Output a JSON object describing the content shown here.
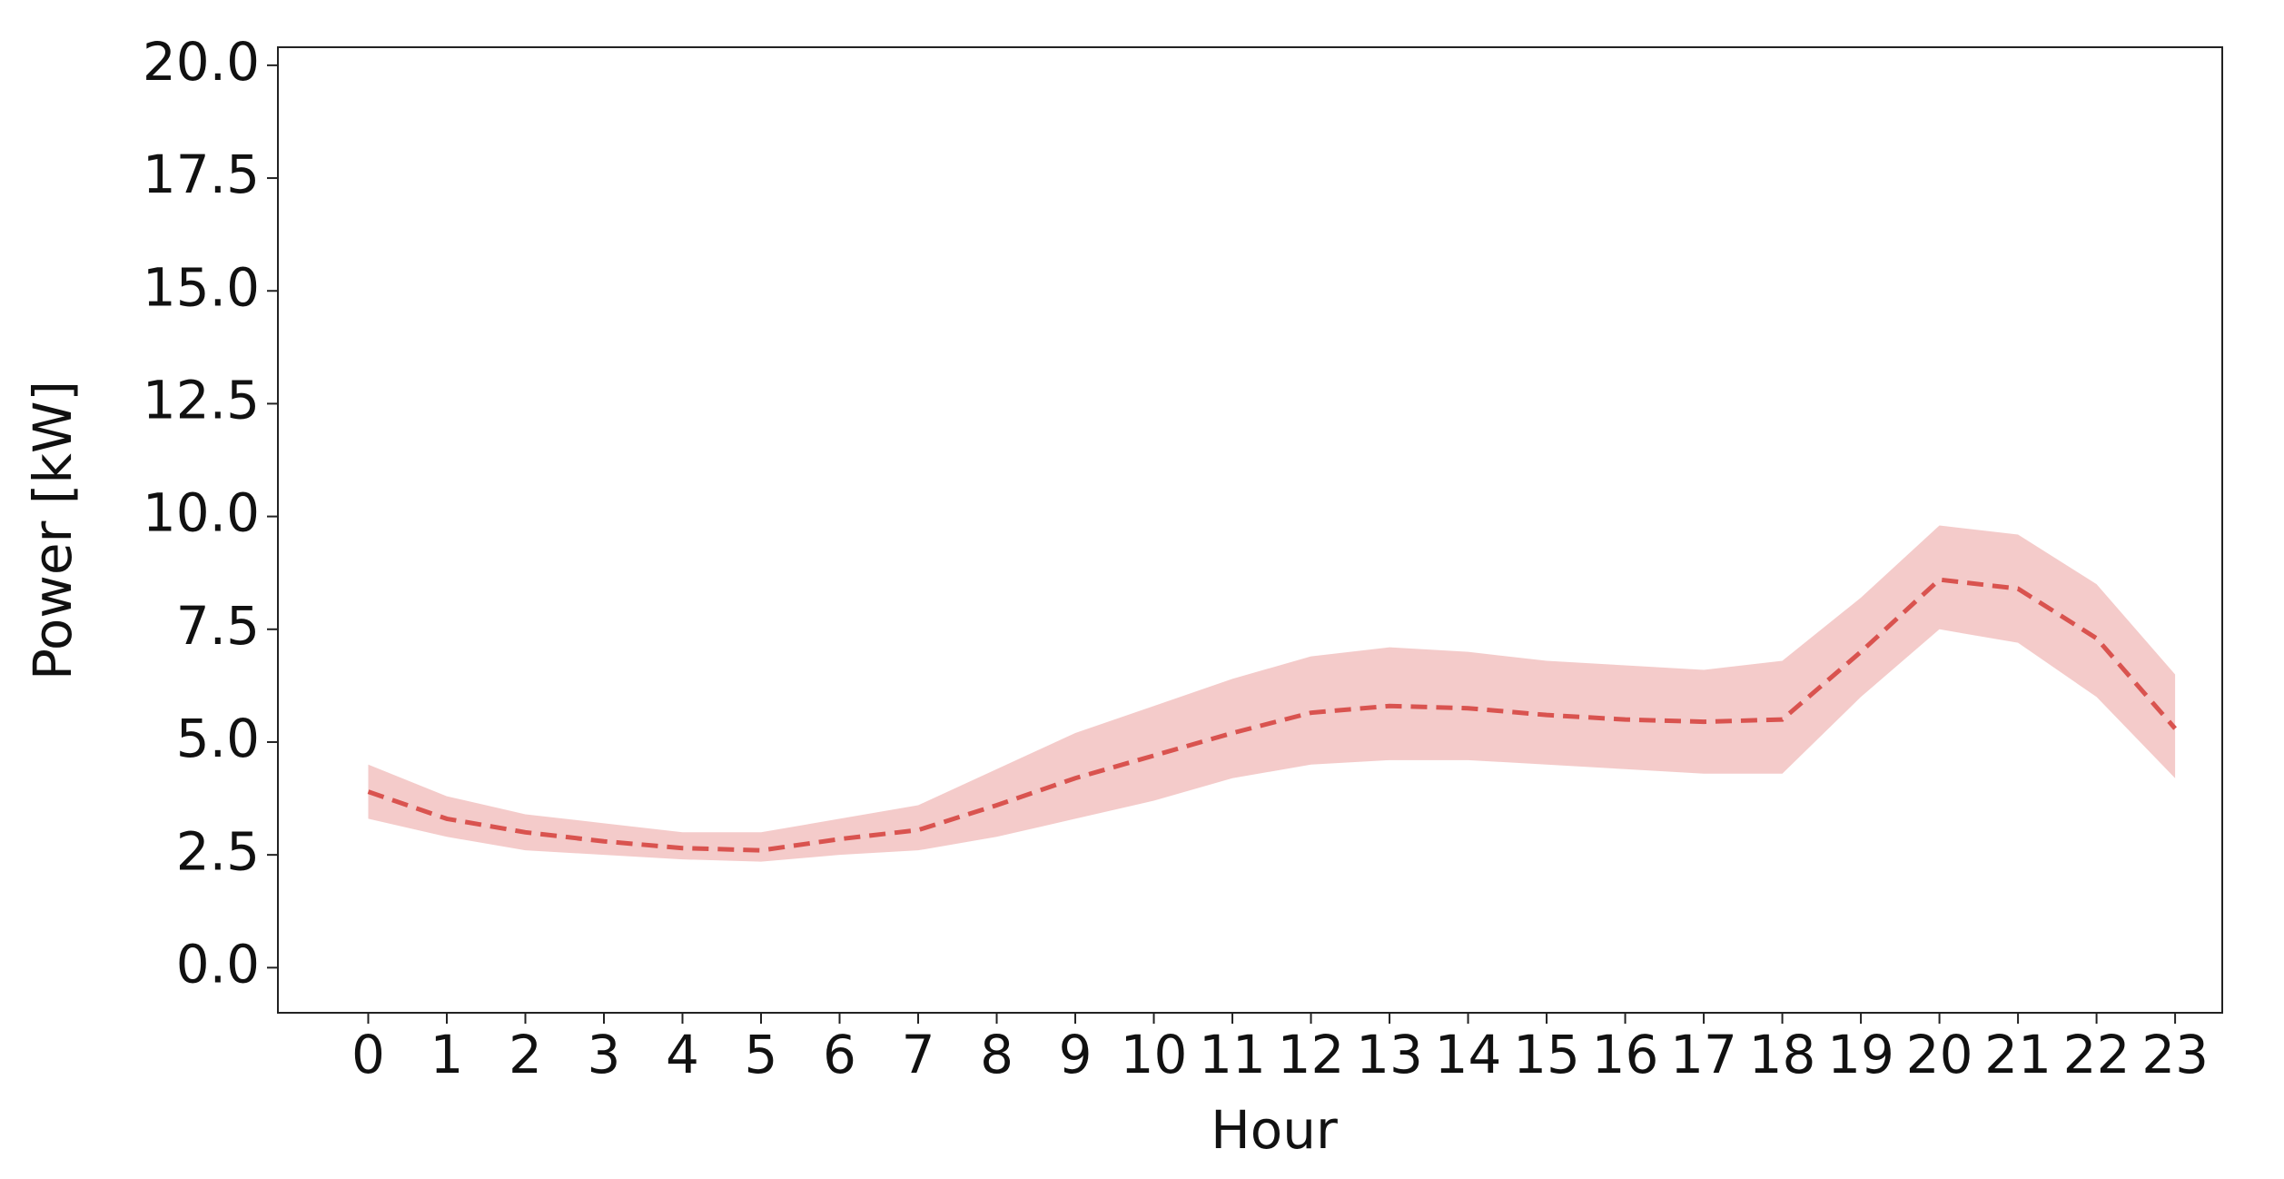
{
  "chart_data": {
    "type": "line",
    "x": [
      0,
      1,
      2,
      3,
      4,
      5,
      6,
      7,
      8,
      9,
      10,
      11,
      12,
      13,
      14,
      15,
      16,
      17,
      18,
      19,
      20,
      21,
      22,
      23
    ],
    "series": [
      {
        "color": "#d9534f",
        "values": [
          3.9,
          3.3,
          3.0,
          2.8,
          2.65,
          2.6,
          2.85,
          3.05,
          3.6,
          4.2,
          4.7,
          5.2,
          5.65,
          5.8,
          5.75,
          5.6,
          5.5,
          5.45,
          5.5,
          7.0,
          8.6,
          8.4,
          7.3,
          5.3
        ]
      }
    ],
    "band_lower": [
      3.3,
      2.9,
      2.6,
      2.5,
      2.4,
      2.35,
      2.5,
      2.6,
      2.9,
      3.3,
      3.7,
      4.2,
      4.5,
      4.6,
      4.6,
      4.5,
      4.4,
      4.3,
      4.3,
      6.0,
      7.5,
      7.2,
      6.0,
      4.2
    ],
    "band_upper": [
      4.5,
      3.8,
      3.4,
      3.2,
      3.0,
      3.0,
      3.3,
      3.6,
      4.4,
      5.2,
      5.8,
      6.4,
      6.9,
      7.1,
      7.0,
      6.8,
      6.7,
      6.6,
      6.8,
      8.2,
      9.8,
      9.6,
      8.5,
      6.5
    ],
    "band_color": "#d9534f",
    "xlabel": "Hour",
    "ylabel": "Power [kW]",
    "xlim": [
      -1.15,
      23.6
    ],
    "ylim": [
      -1.0,
      20.4
    ],
    "xticks": [
      0,
      1,
      2,
      3,
      4,
      5,
      6,
      7,
      8,
      9,
      10,
      11,
      12,
      13,
      14,
      15,
      16,
      17,
      18,
      19,
      20,
      21,
      22,
      23
    ],
    "yticks": [
      {
        "value": 0,
        "label": "0.0"
      },
      {
        "value": 2.5,
        "label": "2.5"
      },
      {
        "value": 5,
        "label": "5.0"
      },
      {
        "value": 7.5,
        "label": "7.5"
      },
      {
        "value": 10,
        "label": "10.0"
      },
      {
        "value": 12.5,
        "label": "12.5"
      },
      {
        "value": 15,
        "label": "15.0"
      },
      {
        "value": 17.5,
        "label": "17.5"
      },
      {
        "value": 20,
        "label": "20.0"
      }
    ]
  }
}
